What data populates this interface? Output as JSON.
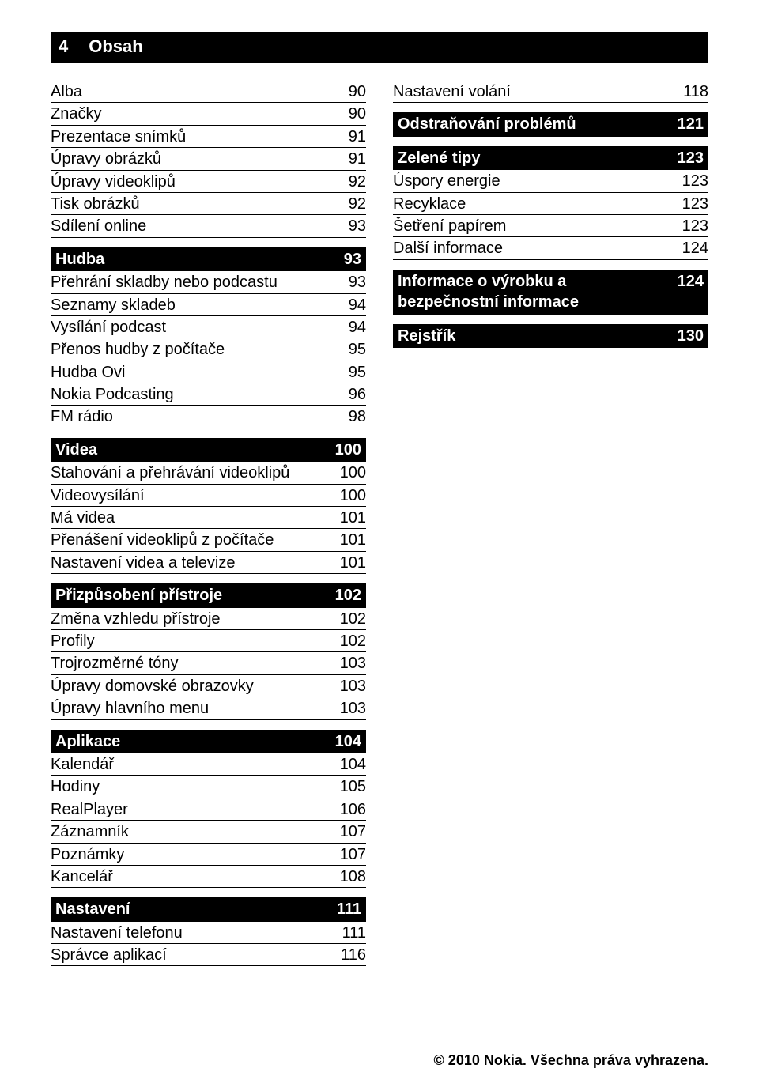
{
  "colors": {
    "bg": "#ffffff",
    "text": "#000000",
    "header_bg": "#000000",
    "header_fg": "#ffffff",
    "rule": "#000000"
  },
  "pageHeader": {
    "pageNumber": "4",
    "title": "Obsah"
  },
  "footer": "© 2010 Nokia. Všechna práva vyhrazena.",
  "leftColumn": [
    {
      "kind": "row",
      "title": "Alba",
      "page": "90"
    },
    {
      "kind": "row",
      "title": "Značky",
      "page": "90"
    },
    {
      "kind": "row",
      "title": "Prezentace snímků",
      "page": "91"
    },
    {
      "kind": "row",
      "title": "Úpravy obrázků",
      "page": "91"
    },
    {
      "kind": "row",
      "title": "Úpravy videoklipů",
      "page": "92"
    },
    {
      "kind": "row",
      "title": "Tisk obrázků",
      "page": "92"
    },
    {
      "kind": "row",
      "title": "Sdílení online",
      "page": "93"
    },
    {
      "kind": "header",
      "title": "Hudba",
      "page": "93"
    },
    {
      "kind": "row",
      "title": "Přehrání skladby nebo podcastu",
      "page": "93"
    },
    {
      "kind": "row",
      "title": "Seznamy skladeb",
      "page": "94"
    },
    {
      "kind": "row",
      "title": "Vysílání podcast",
      "page": "94"
    },
    {
      "kind": "row",
      "title": "Přenos hudby z počítače",
      "page": "95"
    },
    {
      "kind": "row",
      "title": "Hudba Ovi",
      "page": "95"
    },
    {
      "kind": "row",
      "title": "Nokia Podcasting",
      "page": "96"
    },
    {
      "kind": "row",
      "title": "FM rádio",
      "page": "98"
    },
    {
      "kind": "header",
      "title": "Videa",
      "page": "100"
    },
    {
      "kind": "row",
      "title": "Stahování a přehrávání videoklipů",
      "page": "100"
    },
    {
      "kind": "row",
      "title": "Videovysílání",
      "page": "100"
    },
    {
      "kind": "row",
      "title": "Má videa",
      "page": "101"
    },
    {
      "kind": "row",
      "title": "Přenášení videoklipů z počítače",
      "page": "101"
    },
    {
      "kind": "row",
      "title": "Nastavení videa a televize",
      "page": "101"
    },
    {
      "kind": "header",
      "title": "Přizpůsobení přístroje",
      "page": "102"
    },
    {
      "kind": "row",
      "title": "Změna vzhledu přístroje",
      "page": "102"
    },
    {
      "kind": "row",
      "title": "Profily",
      "page": "102"
    },
    {
      "kind": "row",
      "title": "Trojrozměrné tóny",
      "page": "103"
    },
    {
      "kind": "row",
      "title": "Úpravy domovské obrazovky",
      "page": "103"
    },
    {
      "kind": "row",
      "title": "Úpravy hlavního menu",
      "page": "103"
    },
    {
      "kind": "header",
      "title": "Aplikace",
      "page": "104"
    },
    {
      "kind": "row",
      "title": "Kalendář",
      "page": "104"
    },
    {
      "kind": "row",
      "title": "Hodiny",
      "page": "105"
    },
    {
      "kind": "row",
      "title": "RealPlayer",
      "page": "106"
    },
    {
      "kind": "row",
      "title": "Záznamník",
      "page": "107"
    },
    {
      "kind": "row",
      "title": "Poznámky",
      "page": "107"
    },
    {
      "kind": "row",
      "title": "Kancelář",
      "page": "108"
    },
    {
      "kind": "header",
      "title": "Nastavení",
      "page": "111"
    },
    {
      "kind": "row",
      "title": "Nastavení telefonu",
      "page": "111"
    },
    {
      "kind": "row",
      "title": "Správce aplikací",
      "page": "116"
    }
  ],
  "rightColumn": [
    {
      "kind": "row",
      "title": "Nastavení volání",
      "page": "118"
    },
    {
      "kind": "header",
      "title": "Odstraňování problémů",
      "page": "121"
    },
    {
      "kind": "header",
      "title": "Zelené tipy",
      "page": "123"
    },
    {
      "kind": "row",
      "title": "Úspory energie",
      "page": "123"
    },
    {
      "kind": "row",
      "title": "Recyklace",
      "page": "123"
    },
    {
      "kind": "row",
      "title": "Šetření papírem",
      "page": "123"
    },
    {
      "kind": "row",
      "title": "Další informace",
      "page": "124"
    },
    {
      "kind": "header",
      "title": "Informace o výrobku a bezpečnostní informace",
      "page": "124"
    },
    {
      "kind": "header",
      "title": "Rejstřík",
      "page": "130"
    }
  ]
}
